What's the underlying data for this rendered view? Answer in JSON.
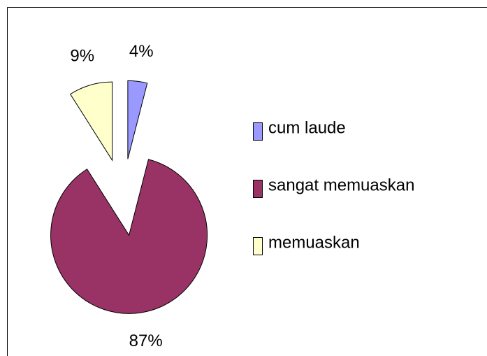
{
  "chart_data": {
    "type": "pie",
    "categories": [
      "cum laude",
      "sangat memuaskan",
      "memuaskan"
    ],
    "values": [
      4,
      87,
      9
    ],
    "value_labels": [
      "4%",
      "87%",
      "9%"
    ],
    "colors": [
      "#9999ff",
      "#993366",
      "#ffffcc"
    ],
    "legend": "right",
    "exploded": true
  }
}
